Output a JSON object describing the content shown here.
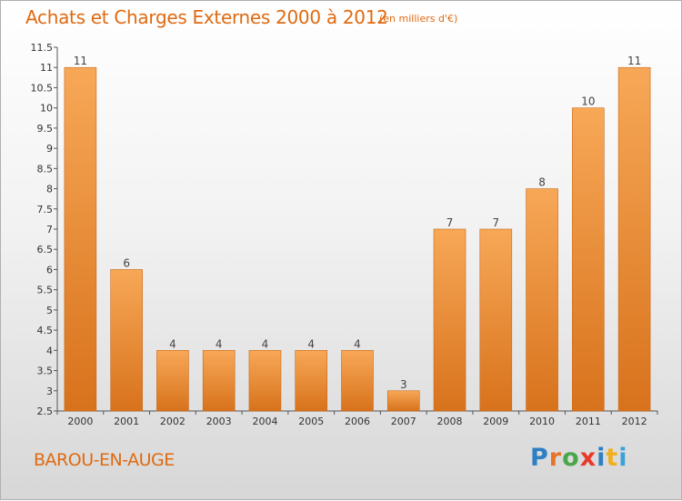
{
  "header": {
    "title": "Achats et Charges Externes 2000 à 2012",
    "unit": "(en milliers d'€)"
  },
  "footer": {
    "place": "BAROU-EN-AUGE",
    "logo": "Proxiti"
  },
  "colors": {
    "title": "#e06a10",
    "bar_top": "#f7a857",
    "bar_bottom": "#d8721c",
    "logo_letters": [
      "#2e7fc4",
      "#e8742a",
      "#4aa64a",
      "#e83a2a",
      "#2e7fc4",
      "#f0b020",
      "#3ba2d8"
    ]
  },
  "chart_data": {
    "type": "bar",
    "categories": [
      "2000",
      "2001",
      "2002",
      "2003",
      "2004",
      "2005",
      "2006",
      "2007",
      "2008",
      "2009",
      "2010",
      "2011",
      "2012"
    ],
    "values": [
      11,
      6,
      4,
      4,
      4,
      4,
      4,
      3,
      7,
      7,
      8,
      10,
      11
    ],
    "data_labels": [
      "11",
      "6",
      "4",
      "4",
      "4",
      "4",
      "4",
      "3",
      "7",
      "7",
      "8",
      "10",
      "11"
    ],
    "ylim": [
      2.5,
      11.5
    ],
    "yticks": [
      "2.5",
      "3",
      "3.5",
      "4",
      "4.5",
      "5",
      "5.5",
      "6",
      "6.5",
      "7",
      "7.5",
      "8",
      "8.5",
      "9",
      "9.5",
      "10",
      "10.5",
      "11",
      "11.5"
    ],
    "ytick_values": [
      2.5,
      3,
      3.5,
      4,
      4.5,
      5,
      5.5,
      6,
      6.5,
      7,
      7.5,
      8,
      8.5,
      9,
      9.5,
      10,
      10.5,
      11,
      11.5
    ],
    "grid": false,
    "legend": "none"
  }
}
